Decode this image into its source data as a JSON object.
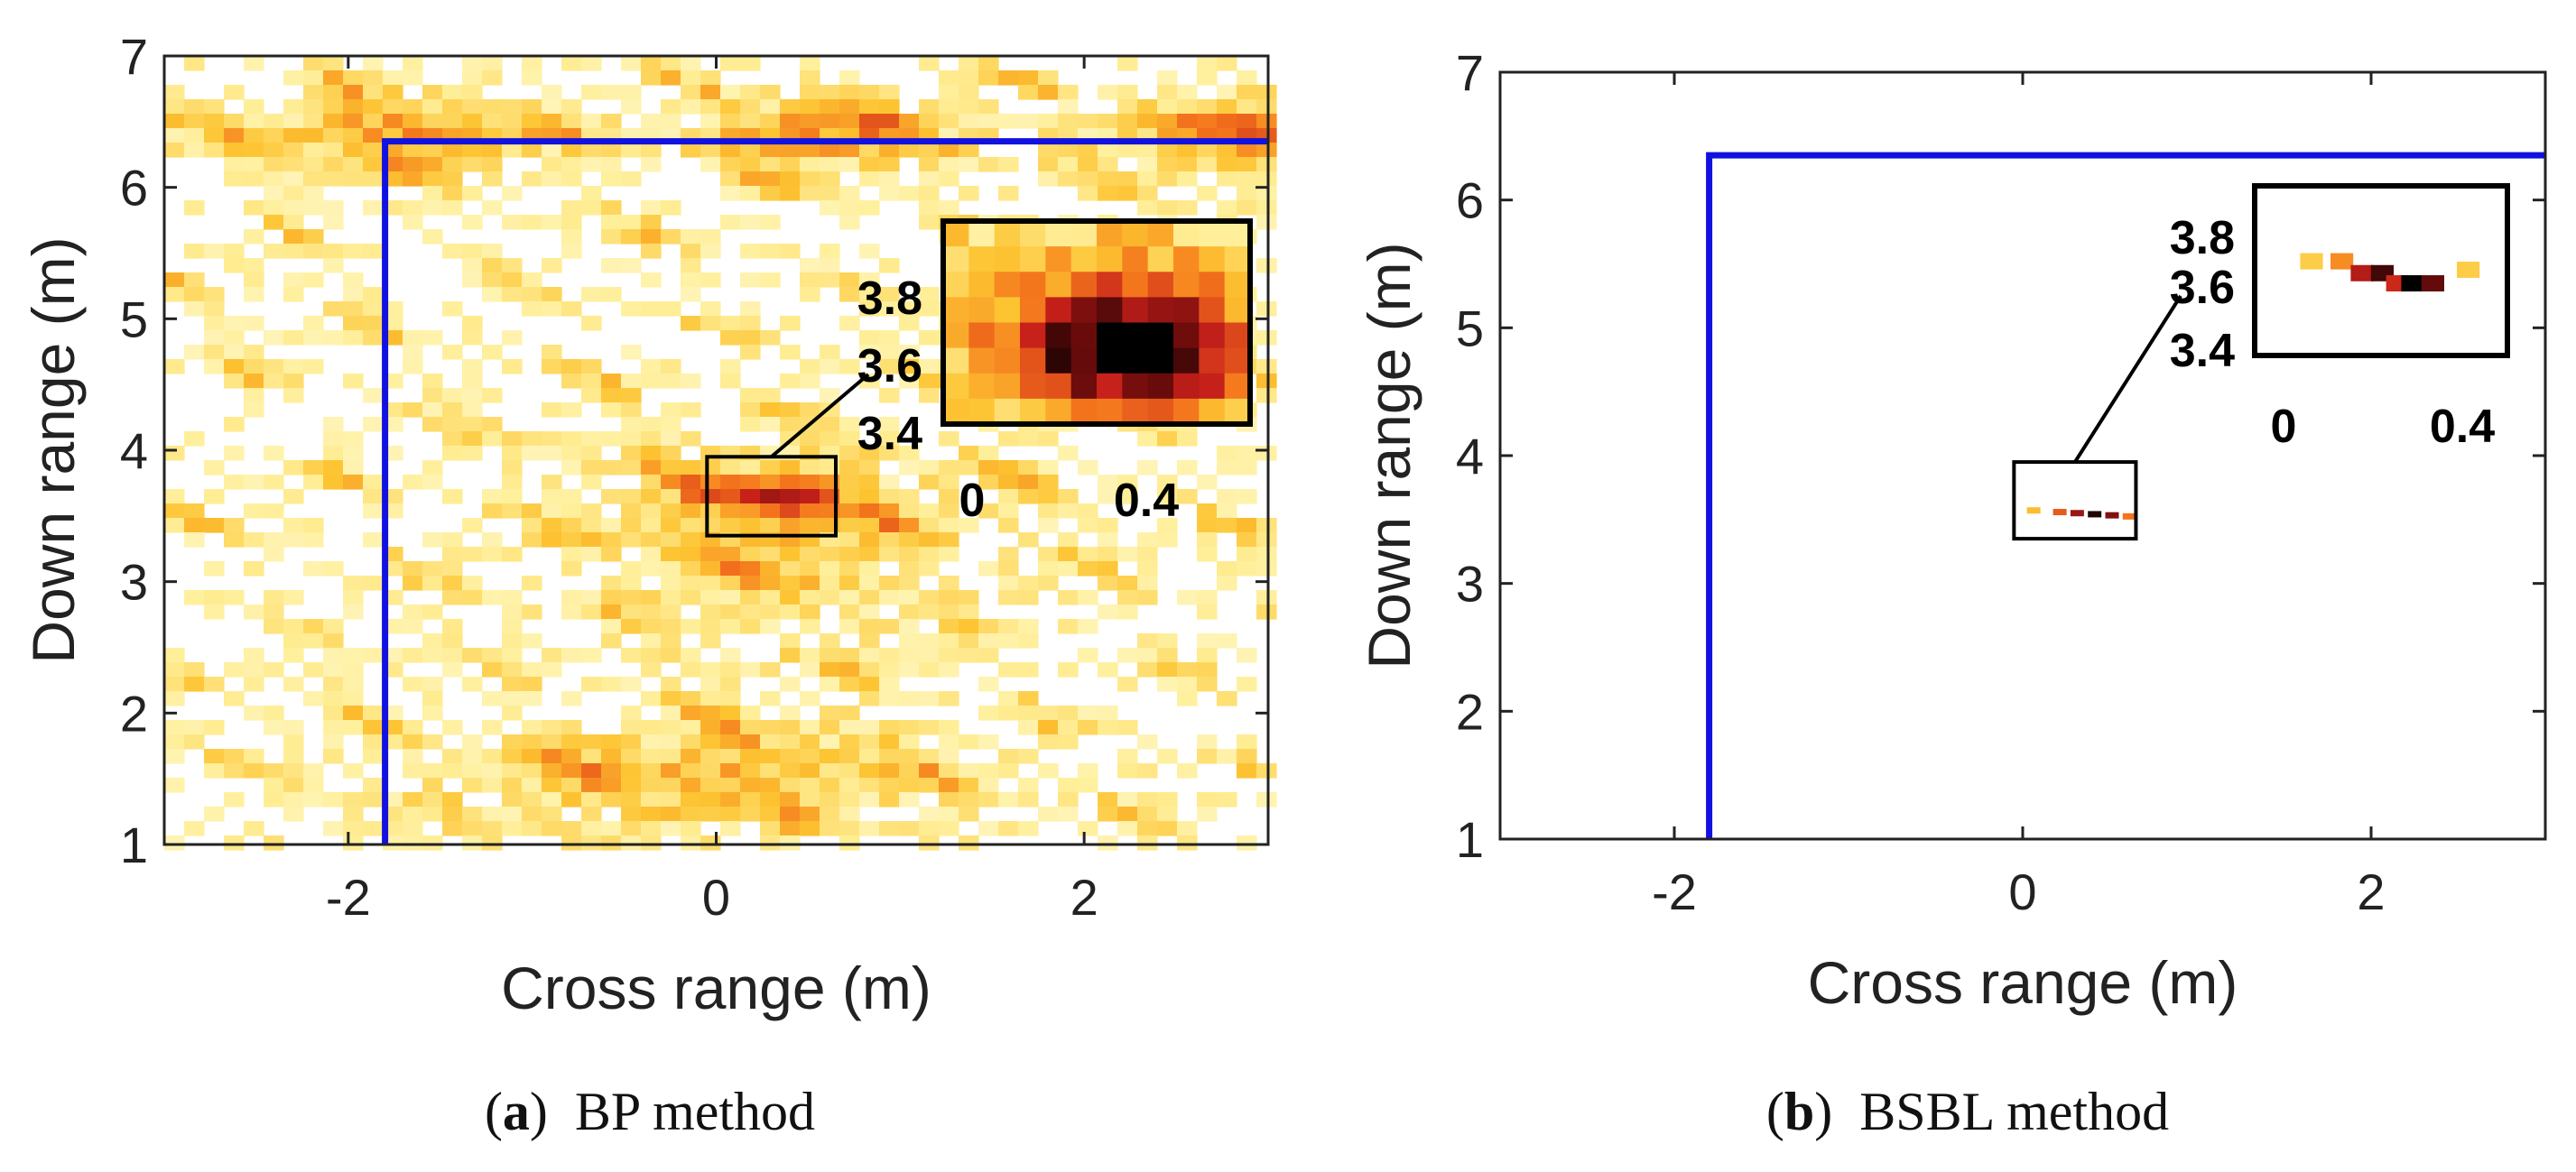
{
  "chart_data": [
    {
      "type": "heatmap",
      "method": "BP method",
      "caption_label": "a",
      "xlabel": "Cross range (m)",
      "ylabel": "Down range (m)",
      "xlim": [
        -3,
        3
      ],
      "ylim": [
        1,
        7
      ],
      "xticks": [
        -2,
        0,
        2
      ],
      "yticks": [
        1,
        2,
        3,
        4,
        5,
        6,
        7
      ],
      "wall": {
        "x": -1.8,
        "y": 6.35,
        "color": "#1111e0"
      },
      "target": {
        "x": 0.3,
        "y": 3.65,
        "box_x": [
          -0.05,
          0.65
        ],
        "box_y": [
          3.35,
          3.95
        ]
      },
      "colormap": [
        "#ffffff",
        "#ffef9a",
        "#fdc432",
        "#f4741c",
        "#c6201a",
        "#6e0c0c",
        "#000000"
      ],
      "inset": {
        "xticks": [
          "0",
          "0.4"
        ],
        "yticks": [
          "3.8",
          "3.6",
          "3.4"
        ]
      }
    },
    {
      "type": "heatmap",
      "method": "BSBL method",
      "caption_label": "b",
      "xlabel": "Cross range (m)",
      "ylabel": "Down range (m)",
      "xlim": [
        -3,
        3
      ],
      "ylim": [
        1,
        7
      ],
      "xticks": [
        -2,
        0,
        2
      ],
      "yticks": [
        1,
        2,
        3,
        4,
        5,
        6,
        7
      ],
      "wall": {
        "x": -1.8,
        "y": 6.35,
        "color": "#1111e0"
      },
      "target": {
        "x": 0.3,
        "y": 3.55,
        "box_x": [
          -0.05,
          0.65
        ],
        "box_y": [
          3.35,
          3.95
        ]
      },
      "colormap": [
        "#ffffff",
        "#ffef9a",
        "#fdc432",
        "#f4741c",
        "#c6201a",
        "#6e0c0c",
        "#000000"
      ],
      "inset": {
        "xticks": [
          "0",
          "0.4"
        ],
        "yticks": [
          "3.8",
          "3.6",
          "3.4"
        ]
      }
    }
  ]
}
